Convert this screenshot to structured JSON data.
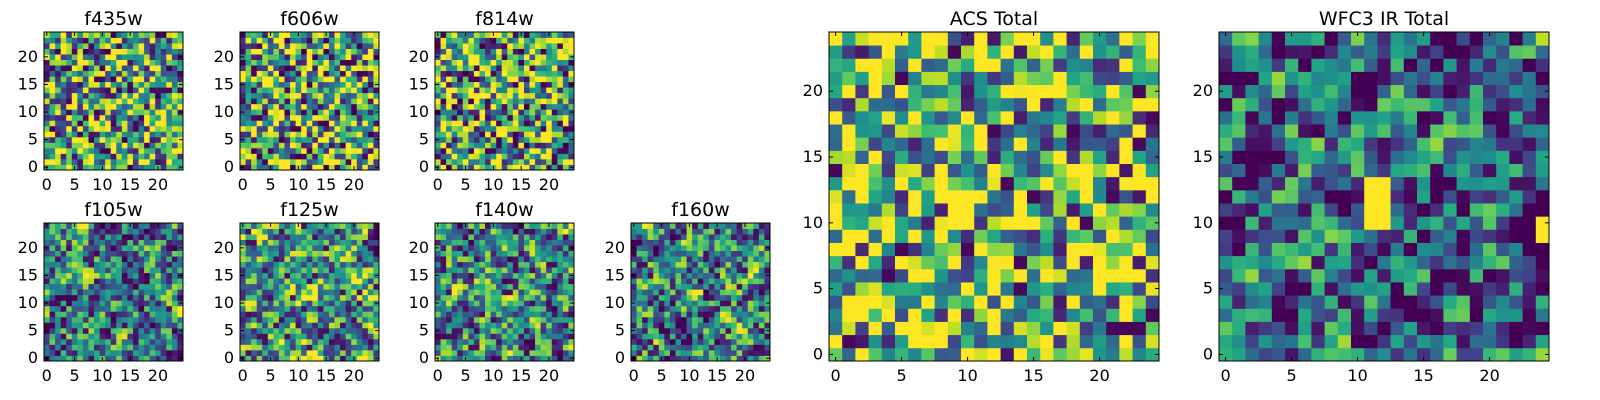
{
  "chart_data": [
    {
      "type": "heatmap",
      "title": "f435w",
      "xticks": [
        "0",
        "5",
        "10",
        "15",
        "20"
      ],
      "yticks": [
        "0",
        "5",
        "10",
        "15",
        "20"
      ],
      "xlim": [
        0,
        25
      ],
      "ylim": [
        0,
        25
      ],
      "grid": false,
      "colormap": "viridis",
      "image_size": [
        25,
        25
      ],
      "seed": 11
    },
    {
      "type": "heatmap",
      "title": "f606w",
      "xticks": [
        "0",
        "5",
        "10",
        "15",
        "20"
      ],
      "yticks": [
        "0",
        "5",
        "10",
        "15",
        "20"
      ],
      "xlim": [
        0,
        25
      ],
      "ylim": [
        0,
        25
      ],
      "grid": false,
      "colormap": "viridis",
      "image_size": [
        25,
        25
      ],
      "seed": 23
    },
    {
      "type": "heatmap",
      "title": "f814w",
      "xticks": [
        "0",
        "5",
        "10",
        "15",
        "20"
      ],
      "yticks": [
        "0",
        "5",
        "10",
        "15",
        "20"
      ],
      "xlim": [
        0,
        25
      ],
      "ylim": [
        0,
        25
      ],
      "grid": false,
      "colormap": "viridis",
      "image_size": [
        25,
        25
      ],
      "seed": 37
    },
    {
      "type": "heatmap",
      "title": "f105w",
      "xticks": [
        "0",
        "5",
        "10",
        "15",
        "20"
      ],
      "yticks": [
        "0",
        "5",
        "10",
        "15",
        "20"
      ],
      "xlim": [
        0,
        25
      ],
      "ylim": [
        0,
        25
      ],
      "grid": false,
      "colormap": "viridis",
      "image_size": [
        25,
        25
      ],
      "seed": 41
    },
    {
      "type": "heatmap",
      "title": "f125w",
      "xticks": [
        "0",
        "5",
        "10",
        "15",
        "20"
      ],
      "yticks": [
        "0",
        "5",
        "10",
        "15",
        "20"
      ],
      "xlim": [
        0,
        25
      ],
      "ylim": [
        0,
        25
      ],
      "grid": false,
      "colormap": "viridis",
      "image_size": [
        25,
        25
      ],
      "seed": 53
    },
    {
      "type": "heatmap",
      "title": "f140w",
      "xticks": [
        "0",
        "5",
        "10",
        "15",
        "20"
      ],
      "yticks": [
        "0",
        "5",
        "10",
        "15",
        "20"
      ],
      "xlim": [
        0,
        25
      ],
      "ylim": [
        0,
        25
      ],
      "grid": false,
      "colormap": "viridis",
      "image_size": [
        25,
        25
      ],
      "seed": 67
    },
    {
      "type": "heatmap",
      "title": "f160w",
      "xticks": [
        "0",
        "5",
        "10",
        "15",
        "20"
      ],
      "yticks": [
        "0",
        "5",
        "10",
        "15",
        "20"
      ],
      "xlim": [
        0,
        25
      ],
      "ylim": [
        0,
        25
      ],
      "grid": false,
      "colormap": "viridis",
      "image_size": [
        25,
        25
      ],
      "seed": 79
    },
    {
      "type": "heatmap",
      "title": "ACS Total",
      "xticks": [
        "0",
        "5",
        "10",
        "15",
        "20"
      ],
      "yticks": [
        "0",
        "5",
        "10",
        "15",
        "20"
      ],
      "xlim": [
        0,
        25
      ],
      "ylim": [
        0,
        25
      ],
      "grid": false,
      "colormap": "viridis",
      "image_size": [
        25,
        25
      ],
      "seed": 97
    },
    {
      "type": "heatmap",
      "title": "WFC3 IR Total",
      "xticks": [
        "0",
        "5",
        "10",
        "15",
        "20"
      ],
      "yticks": [
        "0",
        "5",
        "10",
        "15",
        "20"
      ],
      "xlim": [
        0,
        25
      ],
      "ylim": [
        0,
        25
      ],
      "grid": false,
      "colormap": "viridis",
      "image_size": [
        25,
        25
      ],
      "seed": 113
    }
  ]
}
